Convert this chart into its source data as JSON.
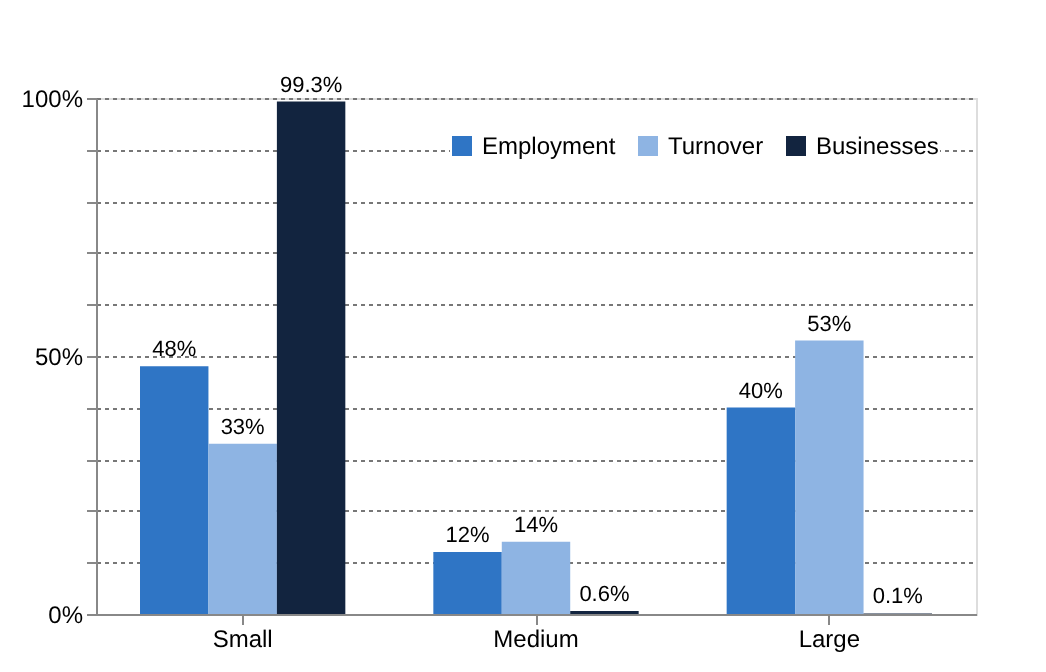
{
  "chart_data": {
    "type": "bar",
    "categories": [
      "Small",
      "Medium",
      "Large"
    ],
    "series": [
      {
        "name": "Employment",
        "color": "#2f75c5",
        "values": [
          48,
          12,
          40
        ],
        "value_labels": [
          "48%",
          "12%",
          "40%"
        ]
      },
      {
        "name": "Turnover",
        "color": "#8eb4e3",
        "values": [
          33,
          14,
          53
        ],
        "value_labels": [
          "33%",
          "14%",
          "53%"
        ]
      },
      {
        "name": "Businesses",
        "color": "#12243f",
        "values": [
          99.3,
          0.6,
          0.1
        ],
        "value_labels": [
          "99.3%",
          "0.6%",
          "0.1%"
        ]
      }
    ],
    "ylim": [
      0,
      100
    ],
    "yticks": [
      {
        "value": 0,
        "label": "0%"
      },
      {
        "value": 10,
        "label": null
      },
      {
        "value": 20,
        "label": null
      },
      {
        "value": 30,
        "label": null
      },
      {
        "value": 40,
        "label": null
      },
      {
        "value": 50,
        "label": "50%"
      },
      {
        "value": 60,
        "label": null
      },
      {
        "value": 70,
        "label": null
      },
      {
        "value": 80,
        "label": null
      },
      {
        "value": 90,
        "label": null
      },
      {
        "value": 100,
        "label": "100%"
      }
    ],
    "grid": "y",
    "legend": "top right"
  }
}
